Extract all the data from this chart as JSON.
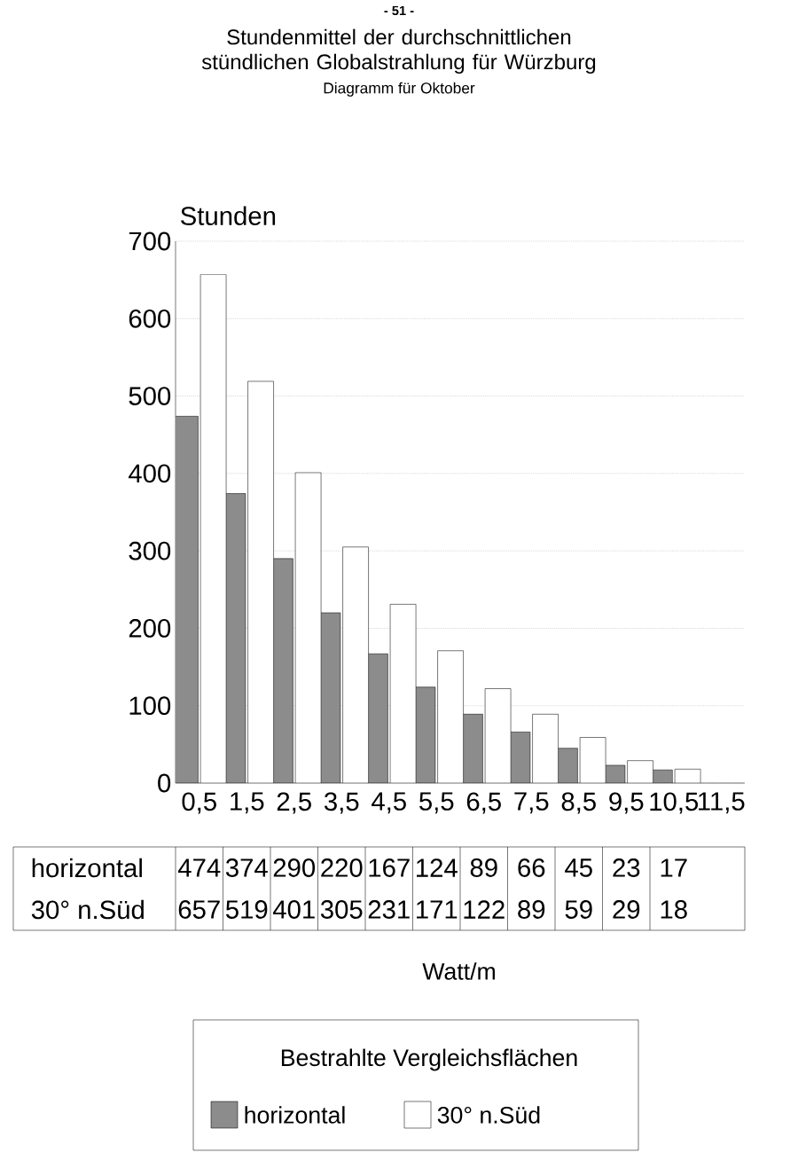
{
  "chart_data": {
    "type": "bar",
    "title": "Stundenmittel der durchschnittlichen stündlichen Globalstrahlung für Würzburg",
    "subtitle": "Diagramm für Oktober",
    "ylabel": "Stunden",
    "legend_title": "Bestrahlte Vergleichsflächen",
    "annotations": [
      "- 51 -",
      "Watt/m"
    ],
    "categories": [
      "0,5",
      "1,5",
      "2,5",
      "3,5",
      "4,5",
      "5,5",
      "6,5",
      "7,5",
      "8,5",
      "9,5",
      "10,5",
      "11,5"
    ],
    "series": [
      {
        "name": "horizontal",
        "color": "#8c8c8c",
        "values": [
          474,
          374,
          290,
          220,
          167,
          124,
          89,
          66,
          45,
          23,
          17,
          null
        ],
        "value_labels": [
          "474",
          "374",
          "290",
          "220",
          "167",
          "124",
          "89",
          "66",
          "45",
          "23",
          "17",
          null
        ]
      },
      {
        "name": "30° n.Süd",
        "color": "#ffffff",
        "values": [
          657,
          519,
          401,
          305,
          231,
          171,
          122,
          89,
          59,
          29,
          18,
          null
        ],
        "value_labels": [
          "657",
          "519",
          "401",
          "305",
          "231",
          "171",
          "122",
          "89",
          "59",
          "29",
          "18",
          null
        ]
      }
    ],
    "ylim": [
      0,
      700
    ],
    "yticks": [
      0,
      100,
      200,
      300,
      400,
      500,
      600,
      700
    ],
    "grid": "y",
    "legend": "bottom"
  }
}
